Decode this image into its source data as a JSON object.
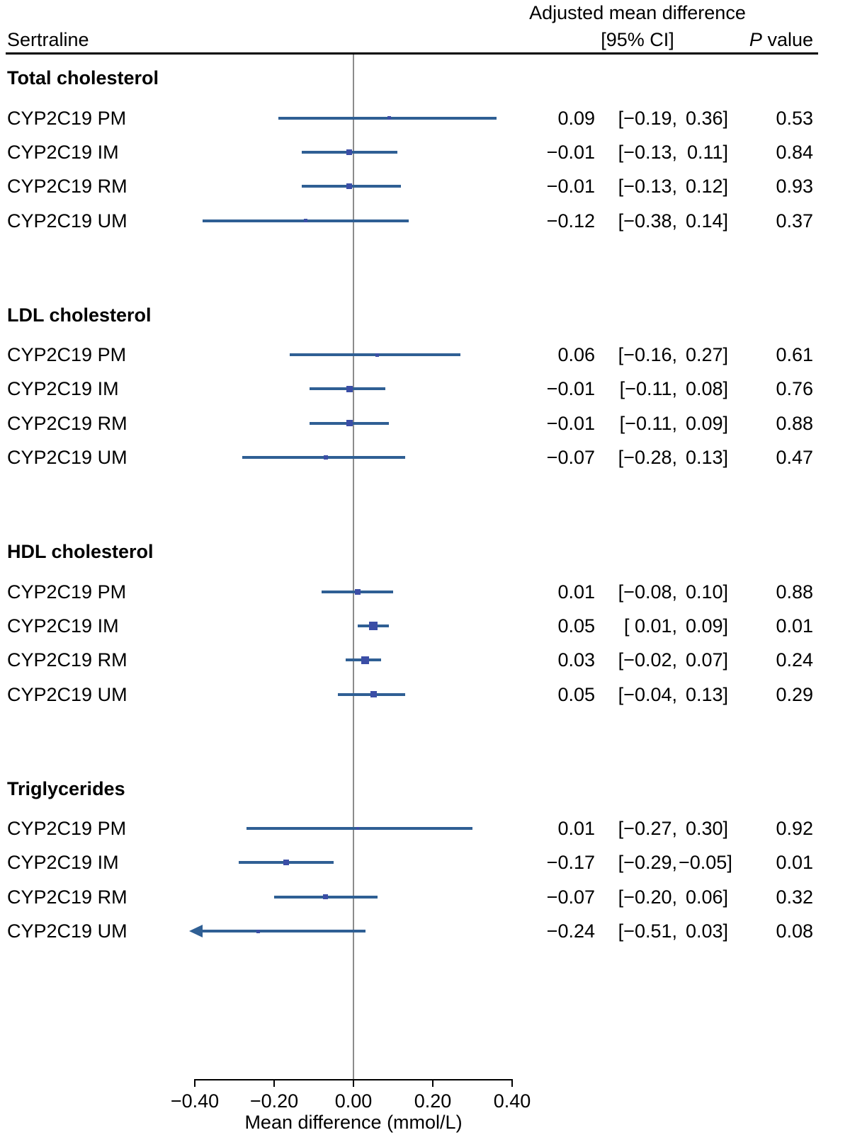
{
  "header": {
    "drug_label": "Sertraline",
    "effect_col_line1": "Adjusted mean difference",
    "effect_col_line2": "[95% CI]",
    "p_col_italic": "P",
    "p_col_rest": " value"
  },
  "axis": {
    "label": "Mean difference (mmol/L)",
    "tick_labels": [
      "−0.40",
      "−0.20",
      "0.00",
      "0.20",
      "0.40"
    ],
    "tick_values": [
      -0.4,
      -0.2,
      0,
      0.2,
      0.4
    ],
    "min": -0.4,
    "max": 0.4
  },
  "colors": {
    "ci_line": "#2f5f94",
    "marker": "#3b4ea6",
    "zero_line": "#8c8c8c",
    "text": "#000000"
  },
  "chart_data": {
    "type": "forest",
    "title": "Sertraline",
    "xlabel": "Mean difference (mmol/L)",
    "xlim": [
      -0.4,
      0.4
    ],
    "reference_line": 0,
    "sections": [
      {
        "title": "Total cholesterol",
        "rows": [
          {
            "label": "CYP2C19 PM",
            "estimate": 0.09,
            "ci_low": -0.19,
            "ci_high": 0.36,
            "est_text": "0.09",
            "lo_text": "[−0.19,",
            "hi_text": "0.36]",
            "p": "0.53",
            "marker": 5,
            "arrow_left": false
          },
          {
            "label": "CYP2C19 IM",
            "estimate": -0.01,
            "ci_low": -0.13,
            "ci_high": 0.11,
            "est_text": "−0.01",
            "lo_text": "[−0.13,",
            "hi_text": "0.11]",
            "p": "0.84",
            "marker": 8,
            "arrow_left": false
          },
          {
            "label": "CYP2C19 RM",
            "estimate": -0.01,
            "ci_low": -0.13,
            "ci_high": 0.12,
            "est_text": "−0.01",
            "lo_text": "[−0.13,",
            "hi_text": "0.12]",
            "p": "0.93",
            "marker": 8,
            "arrow_left": false
          },
          {
            "label": "CYP2C19 UM",
            "estimate": -0.12,
            "ci_low": -0.38,
            "ci_high": 0.14,
            "est_text": "−0.12",
            "lo_text": "[−0.38,",
            "hi_text": "0.14]",
            "p": "0.37",
            "marker": 5,
            "arrow_left": false
          }
        ]
      },
      {
        "title": "LDL cholesterol",
        "rows": [
          {
            "label": "CYP2C19 PM",
            "estimate": 0.06,
            "ci_low": -0.16,
            "ci_high": 0.27,
            "est_text": "0.06",
            "lo_text": "[−0.16,",
            "hi_text": "0.27]",
            "p": "0.61",
            "marker": 5,
            "arrow_left": false
          },
          {
            "label": "CYP2C19 IM",
            "estimate": -0.01,
            "ci_low": -0.11,
            "ci_high": 0.08,
            "est_text": "−0.01",
            "lo_text": "[−0.11,",
            "hi_text": "0.08]",
            "p": "0.76",
            "marker": 9,
            "arrow_left": false
          },
          {
            "label": "CYP2C19 RM",
            "estimate": -0.01,
            "ci_low": -0.11,
            "ci_high": 0.09,
            "est_text": "−0.01",
            "lo_text": "[−0.11,",
            "hi_text": "0.09]",
            "p": "0.88",
            "marker": 9,
            "arrow_left": false
          },
          {
            "label": "CYP2C19 UM",
            "estimate": -0.07,
            "ci_low": -0.28,
            "ci_high": 0.13,
            "est_text": "−0.07",
            "lo_text": "[−0.28,",
            "hi_text": "0.13]",
            "p": "0.47",
            "marker": 6,
            "arrow_left": false
          }
        ]
      },
      {
        "title": "HDL cholesterol",
        "rows": [
          {
            "label": "CYP2C19 PM",
            "estimate": 0.01,
            "ci_low": -0.08,
            "ci_high": 0.1,
            "est_text": "0.01",
            "lo_text": "[−0.08,",
            "hi_text": "0.10]",
            "p": "0.88",
            "marker": 8,
            "arrow_left": false
          },
          {
            "label": "CYP2C19 IM",
            "estimate": 0.05,
            "ci_low": 0.01,
            "ci_high": 0.09,
            "est_text": "0.05",
            "lo_text": "[ 0.01,",
            "hi_text": "0.09]",
            "p": "0.01",
            "marker": 12,
            "arrow_left": false
          },
          {
            "label": "CYP2C19 RM",
            "estimate": 0.03,
            "ci_low": -0.02,
            "ci_high": 0.07,
            "est_text": "0.03",
            "lo_text": "[−0.02,",
            "hi_text": "0.07]",
            "p": "0.24",
            "marker": 11,
            "arrow_left": false
          },
          {
            "label": "CYP2C19 UM",
            "estimate": 0.05,
            "ci_low": -0.04,
            "ci_high": 0.13,
            "est_text": "0.05",
            "lo_text": "[−0.04,",
            "hi_text": "0.13]",
            "p": "0.29",
            "marker": 9,
            "arrow_left": false
          }
        ]
      },
      {
        "title": "Triglycerides",
        "rows": [
          {
            "label": "CYP2C19 PM",
            "estimate": 0.01,
            "ci_low": -0.27,
            "ci_high": 0.3,
            "est_text": "0.01",
            "lo_text": "[−0.27,",
            "hi_text": "0.30]",
            "p": "0.92",
            "marker": 4,
            "arrow_left": false
          },
          {
            "label": "CYP2C19 IM",
            "estimate": -0.17,
            "ci_low": -0.29,
            "ci_high": -0.05,
            "est_text": "−0.17",
            "lo_text": "[−0.29,",
            "hi_text": "−0.05]",
            "p": "0.01",
            "marker": 8,
            "arrow_left": false
          },
          {
            "label": "CYP2C19 RM",
            "estimate": -0.07,
            "ci_low": -0.2,
            "ci_high": 0.06,
            "est_text": "−0.07",
            "lo_text": "[−0.20,",
            "hi_text": "0.06]",
            "p": "0.32",
            "marker": 7,
            "arrow_left": false
          },
          {
            "label": "CYP2C19 UM",
            "estimate": -0.24,
            "ci_low": -0.51,
            "ci_high": 0.03,
            "est_text": "−0.24",
            "lo_text": "[−0.51,",
            "hi_text": "0.03]",
            "p": "0.08",
            "marker": 5,
            "arrow_left": true
          }
        ]
      }
    ]
  }
}
